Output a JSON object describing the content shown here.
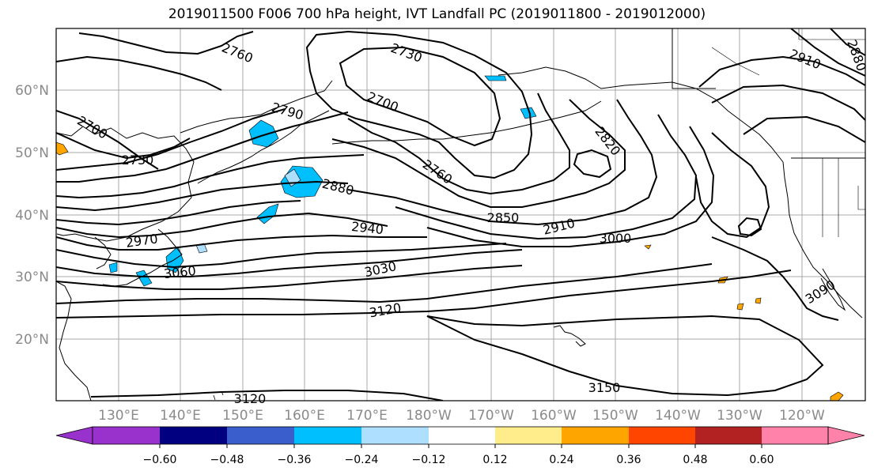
{
  "title": "2019011500 F006 700 hPa height, IVT Landfall PC (2019011800 - 2019012000)",
  "lat_labels": [
    "60°N",
    "50°N",
    "40°N",
    "30°N",
    "20°N"
  ],
  "lon_labels": [
    "130°E",
    "140°E",
    "150°E",
    "160°E",
    "170°E",
    "180°W",
    "170°W",
    "160°W",
    "150°W",
    "140°W",
    "130°W",
    "120°W"
  ],
  "contour_labels": [
    "2760",
    "2730",
    "2910",
    "2880",
    "2700",
    "2790",
    "2700",
    "2730",
    "2820",
    "2760",
    "2880",
    "2850",
    "2940",
    "2910",
    "3000",
    "2970",
    "3030",
    "3060",
    "3090",
    "3120",
    "3150",
    "3120"
  ],
  "colorbar": {
    "ticks": [
      "−0.60",
      "−0.48",
      "−0.36",
      "−0.24",
      "−0.12",
      "0.12",
      "0.24",
      "0.36",
      "0.48",
      "0.60"
    ],
    "colors": [
      "#9932cc",
      "#000080",
      "#3a5fcd",
      "#00bfff",
      "#afdfff",
      "#ffffff",
      "#ffec8b",
      "#ffa500",
      "#ff4500",
      "#b22222",
      "#ff82ab",
      "#ff82ab"
    ]
  }
}
